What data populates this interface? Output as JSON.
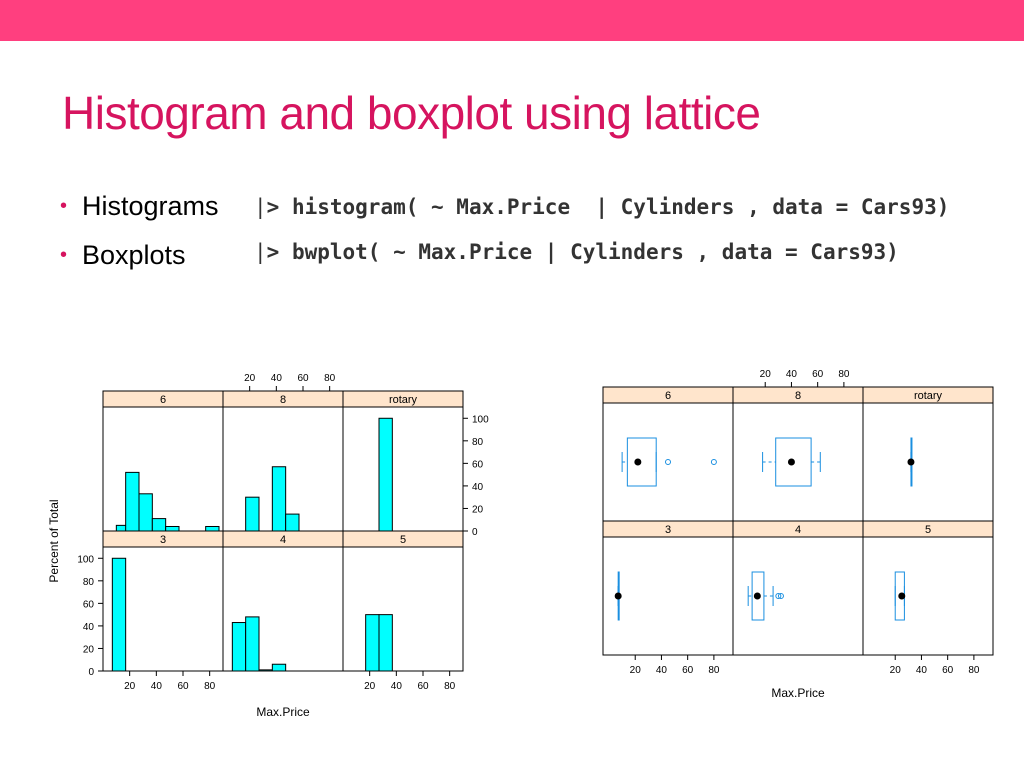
{
  "slide": {
    "title": "Histogram and boxplot using lattice",
    "accent_color": "#ff3f7f",
    "title_color": "#d6145f"
  },
  "bullets": [
    {
      "label": "Histograms",
      "code": "> histogram( ~ Max.Price  | Cylinders , data = Cars93)"
    },
    {
      "label": "Boxplots",
      "code": "> bwplot( ~ Max.Price | Cylinders , data = Cars93)"
    }
  ],
  "chart_data": [
    {
      "type": "bar",
      "ylabel": "Percent of Total",
      "xlabel": "Max.Price",
      "x_ticks": [
        "20",
        "40",
        "60",
        "80"
      ],
      "y_ticks": [
        "0",
        "20",
        "40",
        "60",
        "80",
        "100"
      ],
      "xlim": [
        0,
        90
      ],
      "ylim": [
        0,
        110
      ],
      "strip_color": "#ffe5cc",
      "bar_color": "#00ffff",
      "panels": [
        {
          "label": "6",
          "bins": [
            [
              10,
              5
            ],
            [
              17,
              52
            ],
            [
              27,
              33
            ],
            [
              37,
              11
            ],
            [
              47,
              4
            ],
            [
              57,
              0
            ],
            [
              67,
              0
            ],
            [
              77,
              4
            ]
          ]
        },
        {
          "label": "8",
          "bins": [
            [
              17,
              30
            ],
            [
              27,
              0
            ],
            [
              37,
              57
            ],
            [
              47,
              15
            ]
          ]
        },
        {
          "label": "rotary",
          "bins": [
            [
              27,
              100
            ]
          ]
        },
        {
          "label": "3",
          "bins": [
            [
              7,
              100
            ]
          ]
        },
        {
          "label": "4",
          "bins": [
            [
              7,
              43
            ],
            [
              17,
              48
            ],
            [
              27,
              1
            ],
            [
              37,
              6
            ]
          ]
        },
        {
          "label": "5",
          "bins": [
            [
              17,
              50
            ],
            [
              27,
              50
            ]
          ]
        }
      ]
    },
    {
      "type": "boxplot",
      "xlabel": "Max.Price",
      "x_ticks": [
        "20",
        "40",
        "60",
        "80"
      ],
      "xlim": [
        0,
        90
      ],
      "strip_color": "#ffe5cc",
      "box_color": "#1a8fe0",
      "panels": [
        {
          "label": "6",
          "box": [
            14,
            22,
            36
          ],
          "whisker": [
            10,
            36
          ],
          "outliers": [
            45,
            80
          ]
        },
        {
          "label": "8",
          "box": [
            28,
            40,
            55
          ],
          "whisker": [
            18,
            62
          ],
          "outliers": []
        },
        {
          "label": "rotary",
          "box": [
            32,
            32,
            32
          ],
          "whisker": [
            32,
            32
          ],
          "outliers": []
        },
        {
          "label": "3",
          "box": [
            7,
            7,
            7
          ],
          "whisker": [
            7,
            7
          ],
          "outliers": []
        },
        {
          "label": "4",
          "box": [
            10,
            14,
            19
          ],
          "whisker": [
            7,
            26
          ],
          "outliers": [
            30,
            32
          ]
        },
        {
          "label": "5",
          "box": [
            20,
            25,
            27
          ],
          "whisker": [
            20,
            27
          ],
          "outliers": []
        }
      ]
    }
  ]
}
